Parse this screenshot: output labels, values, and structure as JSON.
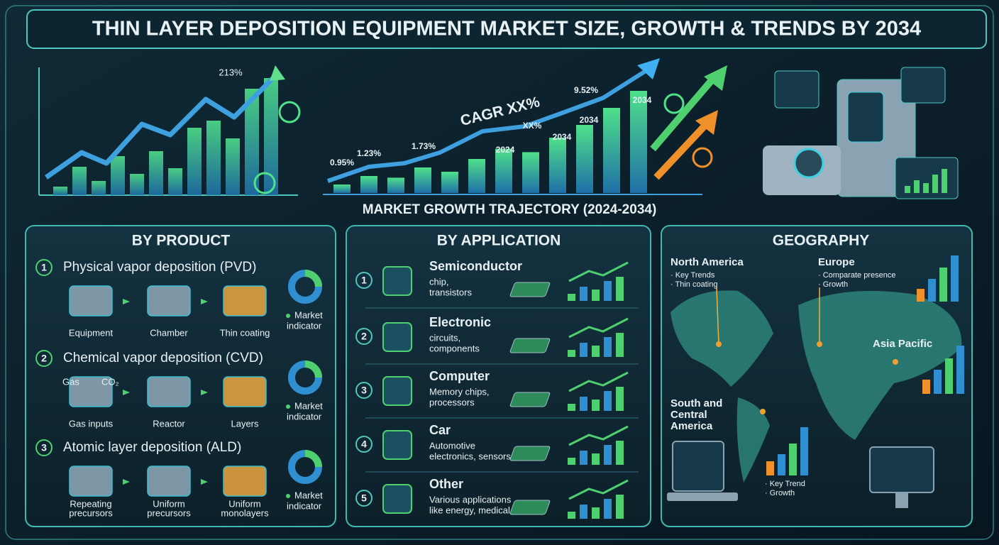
{
  "header": {
    "title": "THIN LAYER DEPOSITION EQUIPMENT MARKET SIZE, GROWTH & TRENDS BY 2034"
  },
  "hero": {
    "left_label": "213%",
    "cagr": "CAGR XX%",
    "labels": [
      "0.95%",
      "1.23%",
      "1.73%",
      "2024",
      "XX%",
      "2034",
      "2034",
      "9.52%",
      "2034"
    ],
    "caption": "MARKET GROWTH TRAJECTORY (2024-2034)"
  },
  "product": {
    "title": "BY PRODUCT",
    "items": [
      {
        "num": "1",
        "name": "Physical vapor deposition (PVD)",
        "steps": [
          [
            "Equipment"
          ],
          [
            "Chamber"
          ],
          [
            "Thin coating"
          ]
        ],
        "indicator": [
          "Market",
          "indicator"
        ]
      },
      {
        "num": "2",
        "name": "Chemical vapor deposition (CVD)",
        "steps": [
          [
            "Gas inputs"
          ],
          [
            "Reactor"
          ],
          [
            "Layers"
          ]
        ],
        "indicator": [
          "Market",
          "indicator"
        ],
        "gas": [
          "Gas",
          "CO₂"
        ]
      },
      {
        "num": "3",
        "name": "Atomic layer deposition (ALD)",
        "steps": [
          [
            "Repeating",
            "precursors"
          ],
          [
            "Uniform",
            "precursors"
          ],
          [
            "Uniform",
            "monolayers"
          ]
        ],
        "indicator": [
          "Market",
          "indicator"
        ]
      }
    ]
  },
  "application": {
    "title": "BY APPLICATION",
    "items": [
      {
        "num": "1",
        "name": "Semiconductor",
        "desc": [
          "chip,",
          "transistors"
        ]
      },
      {
        "num": "2",
        "name": "Electronic",
        "desc": [
          "circuits,",
          "components"
        ]
      },
      {
        "num": "3",
        "name": "Computer",
        "desc": [
          "Memory chips,",
          "processors"
        ]
      },
      {
        "num": "4",
        "name": "Car",
        "desc": [
          "Automotive",
          "electronics, sensors"
        ]
      },
      {
        "num": "5",
        "name": "Other",
        "desc": [
          "Various applications",
          "like energy, medical"
        ]
      }
    ]
  },
  "geography": {
    "title": "GEOGRAPHY",
    "north_america": {
      "name": "North America",
      "notes": [
        "· Key Trends",
        "· Thin coating"
      ]
    },
    "europe": {
      "name": "Europe",
      "notes": [
        "· Comparate presence",
        "· Growth"
      ]
    },
    "asia_pacific": {
      "name": "Asia Pacific"
    },
    "south_america": {
      "name": [
        "South and",
        "Central",
        "America"
      ]
    },
    "monitor": {
      "notes": [
        "· Key Trend",
        "· Growth"
      ]
    }
  }
}
